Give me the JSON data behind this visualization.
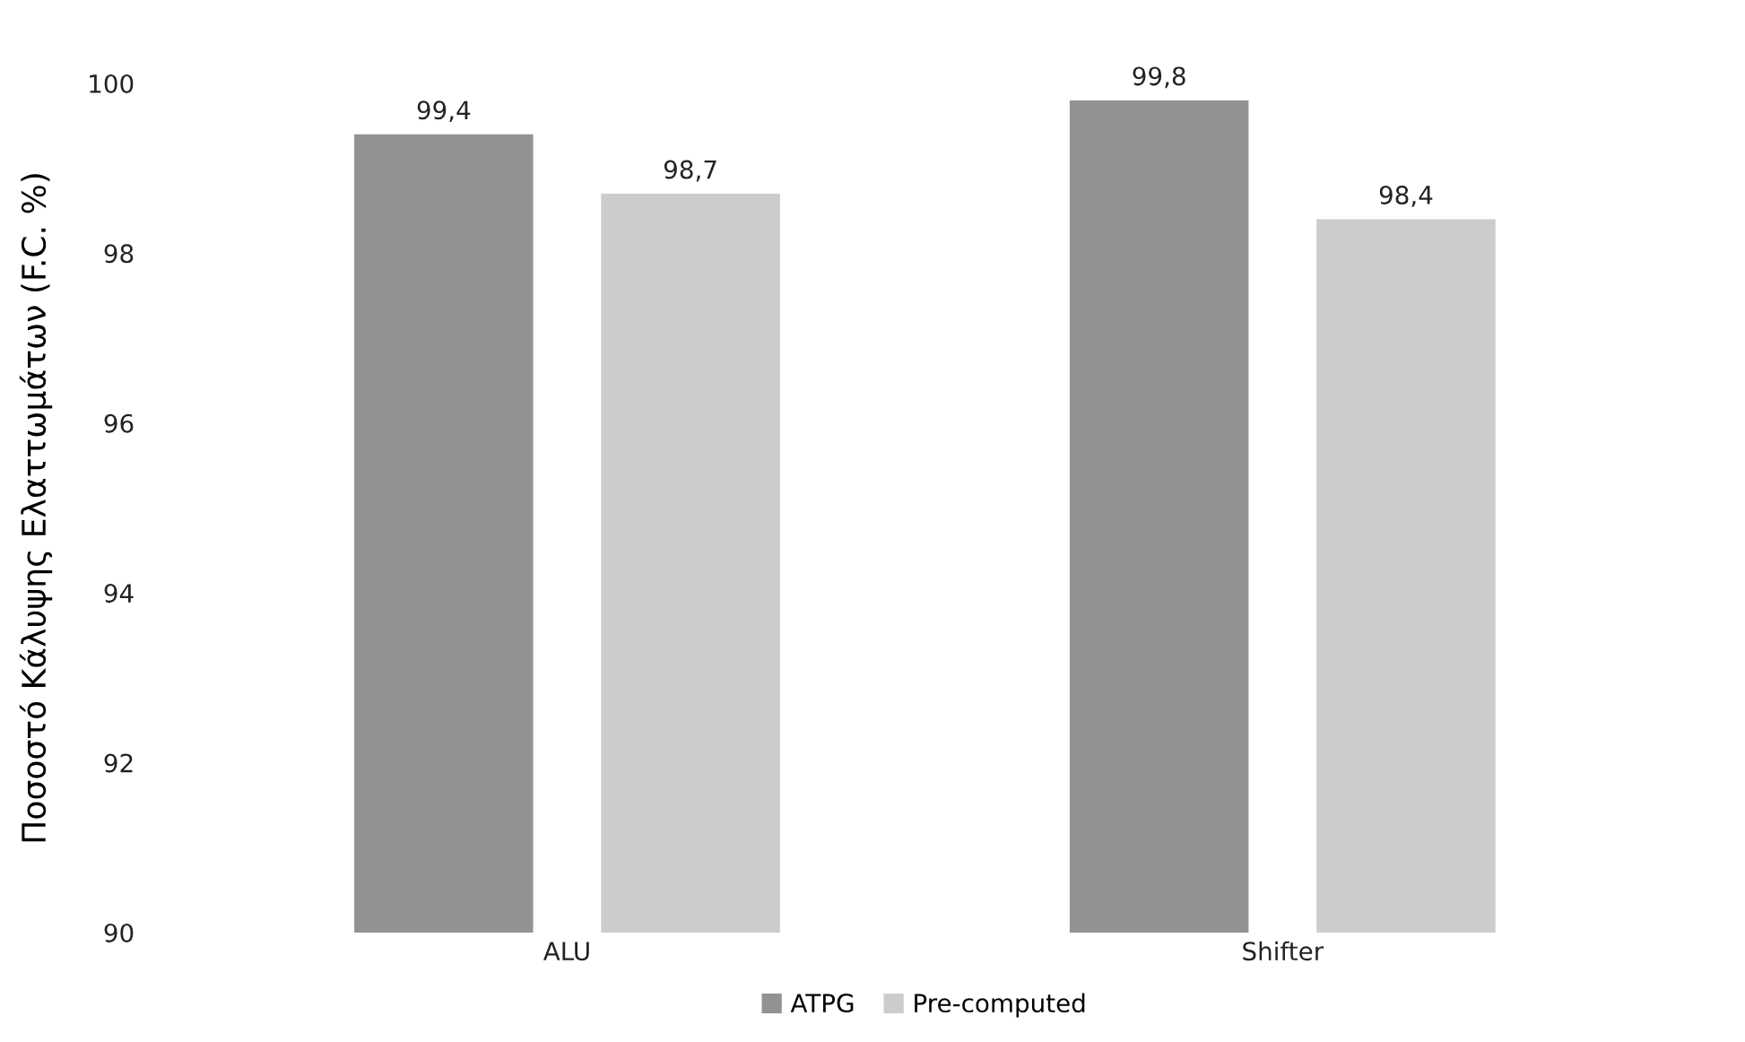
{
  "chart_data": {
    "type": "bar",
    "ylabel": "Ποσοστό Κάλυψης Ελαττωμάτων (F.C. %)",
    "categories": [
      "ALU",
      "Shifter"
    ],
    "series": [
      {
        "name": "ATPG",
        "color": "#929292",
        "values": [
          99.4,
          99.8
        ],
        "value_labels": [
          "99,4",
          "99,8"
        ]
      },
      {
        "name": "Pre-computed",
        "color": "#cccccc",
        "values": [
          98.7,
          98.4
        ],
        "value_labels": [
          "98,7",
          "98,4"
        ]
      }
    ],
    "ylim": [
      90,
      100
    ],
    "yticks": [
      90,
      92,
      94,
      96,
      98,
      100
    ],
    "grid": false,
    "legend": "bottom"
  }
}
